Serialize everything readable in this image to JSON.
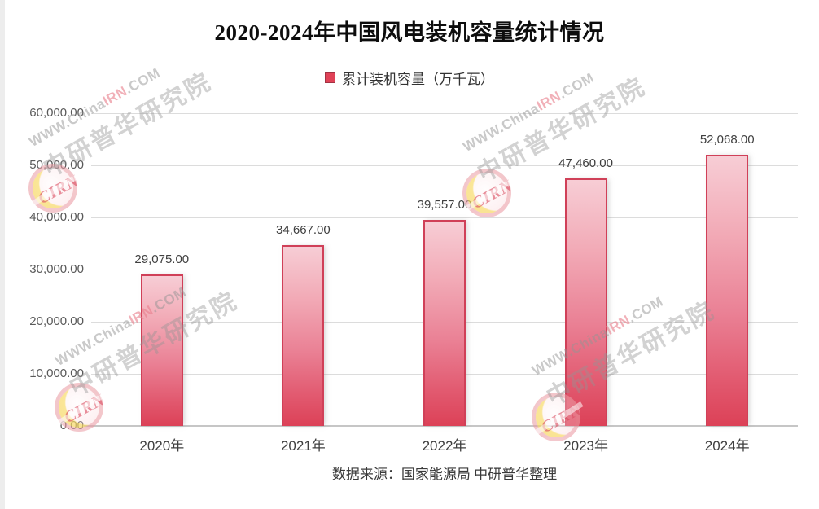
{
  "title": "2020-2024年中国风电装机容量统计情况",
  "legend": {
    "label": "累计装机容量（万千瓦）",
    "marker_color": "#e04257"
  },
  "footer": "数据来源：国家能源局 中研普华整理",
  "watermark": {
    "badge": "CIRN",
    "line1_prefix": "WWW.China",
    "line1_highlight": "IRN",
    "line1_suffix": ".COM",
    "line2": "中研普华研究院"
  },
  "chart_data": {
    "type": "bar",
    "title": "2020-2024年中国风电装机容量统计情况",
    "series_name": "累计装机容量（万千瓦）",
    "categories": [
      "2020年",
      "2021年",
      "2022年",
      "2023年",
      "2024年"
    ],
    "values": [
      29075,
      34667,
      39557,
      47460,
      52068
    ],
    "value_labels": [
      "29,075.00",
      "34,667.00",
      "39,557.00",
      "47,460.00",
      "52,068.00"
    ],
    "xlabel": "",
    "ylabel": "",
    "ylim": [
      0,
      60000
    ],
    "ytick_step": 10000,
    "ytick_labels": [
      "0.00",
      "10,000.00",
      "20,000.00",
      "30,000.00",
      "40,000.00",
      "50,000.00",
      "60,000.00"
    ],
    "grid": true,
    "legend_position": "top",
    "bar_color_top": "#f7cdd5",
    "bar_color_bottom": "#dc4157",
    "bar_border_color": "#d04058"
  }
}
